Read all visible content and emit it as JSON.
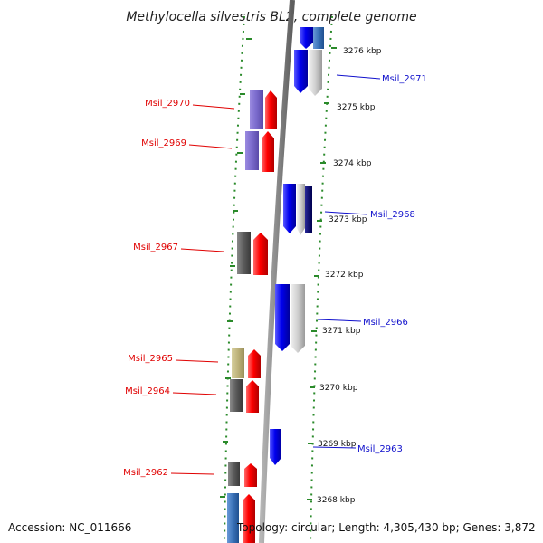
{
  "title": "Methylocella silvestris BL2, complete genome",
  "footer": {
    "accession": "Accession: NC_011666",
    "topology": "Topology: circular; Length: 4,305,430 bp; Genes: 3,872"
  },
  "scale_labels": [
    "3276 kbp",
    "3275 kbp",
    "3274 kbp",
    "3273 kbp",
    "3272 kbp",
    "3271 kbp",
    "3270 kbp",
    "3269 kbp",
    "3268 kbp"
  ],
  "gene_labels": {
    "left": [
      "Msil_2970",
      "Msil_2969",
      "Msil_2967",
      "Msil_2965",
      "Msil_2964",
      "Msil_2962"
    ],
    "right": [
      "Msil_2971",
      "Msil_2968",
      "Msil_2966",
      "Msil_2963"
    ]
  },
  "colors": {
    "forward_cds": "#ff0000",
    "reverse_cds": "#0000ee",
    "left_red_label": "#e00000",
    "right_blue_label": "#1010cc",
    "backbone": "#888888",
    "tick_dots": "#2a8a2a"
  }
}
